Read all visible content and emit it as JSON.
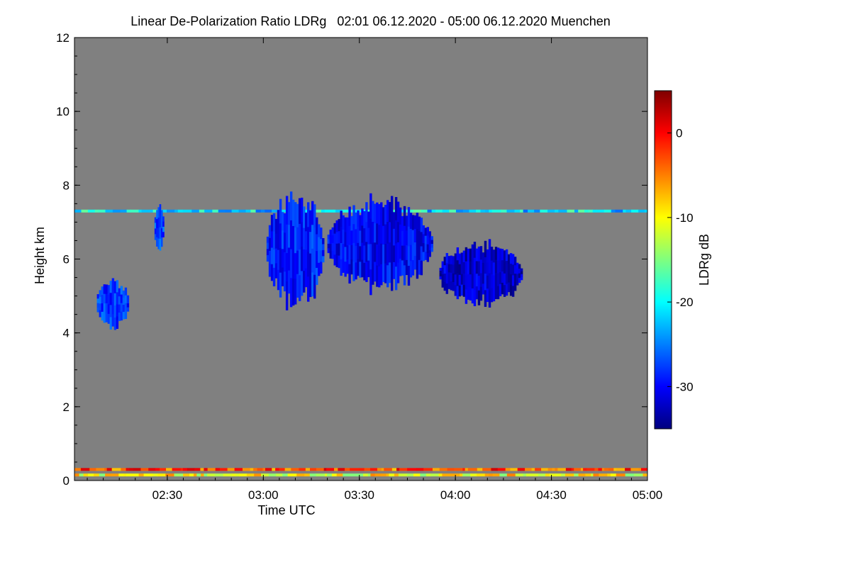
{
  "chart_data": {
    "type": "heatmap",
    "title": "Linear De-Polarization Ratio LDRg   02:01 06.12.2020 - 05:00 06.12.2020 Muenchen",
    "xlabel": "Time UTC",
    "ylabel": "Height km",
    "colorbar_label": "LDRg dB",
    "x_range": [
      "02:01",
      "05:00"
    ],
    "x_ticks": [
      "02:30",
      "03:00",
      "03:30",
      "04:00",
      "04:30",
      "05:00"
    ],
    "y_range": [
      0,
      12
    ],
    "y_ticks": [
      0,
      2,
      4,
      6,
      8,
      10,
      12
    ],
    "colorbar_range": [
      -35,
      5
    ],
    "colorbar_ticks": [
      0,
      -10,
      -20,
      -30
    ],
    "background_color": "#808080",
    "colormap": [
      "#00007f",
      "#0000ff",
      "#007fff",
      "#00ffff",
      "#7fff7f",
      "#ffff00",
      "#ff7f00",
      "#ff0000",
      "#7f0000"
    ],
    "features": [
      {
        "kind": "layer",
        "time_start": "02:01",
        "time_end": "05:00",
        "height_km": 7.3,
        "ldr_db": -21
      },
      {
        "kind": "layer",
        "time_start": "02:01",
        "time_end": "05:00",
        "height_km": 0.3,
        "ldr_db": -3
      },
      {
        "kind": "layer",
        "time_start": "02:01",
        "time_end": "05:00",
        "height_km": 0.15,
        "ldr_db": -10
      },
      {
        "kind": "cloud",
        "time_start": "02:08",
        "time_end": "02:18",
        "height_min_km": 4.1,
        "height_max_km": 5.5,
        "ldr_db": -28
      },
      {
        "kind": "cloud",
        "time_start": "02:26",
        "time_end": "02:29",
        "height_min_km": 6.1,
        "height_max_km": 7.6,
        "ldr_db": -27
      },
      {
        "kind": "cloud",
        "time_start": "03:01",
        "time_end": "03:19",
        "height_min_km": 4.6,
        "height_max_km": 7.9,
        "ldr_db": -29
      },
      {
        "kind": "cloud",
        "time_start": "03:20",
        "time_end": "03:53",
        "height_min_km": 5.1,
        "height_max_km": 7.7,
        "ldr_db": -30
      },
      {
        "kind": "cloud",
        "time_start": "03:55",
        "time_end": "04:21",
        "height_min_km": 4.7,
        "height_max_km": 6.5,
        "ldr_db": -32
      }
    ]
  }
}
